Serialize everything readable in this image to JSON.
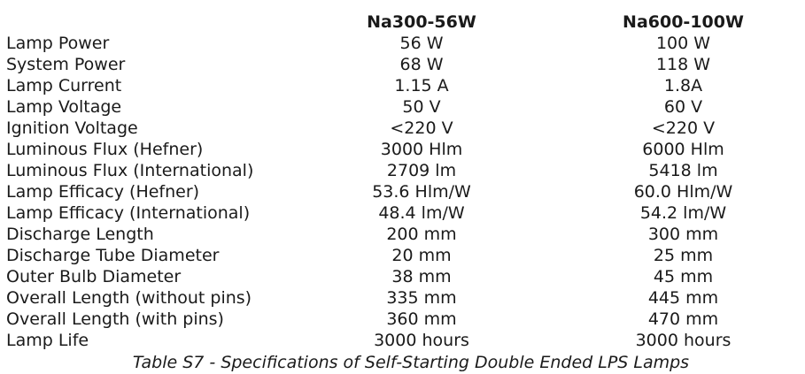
{
  "table": {
    "columns": [
      "",
      "Na300-56W",
      "Na600-100W"
    ],
    "rows": [
      [
        "Lamp Power",
        "56 W",
        "100 W"
      ],
      [
        "System Power",
        "68 W",
        "118 W"
      ],
      [
        "Lamp Current",
        "1.15 A",
        "1.8A"
      ],
      [
        "Lamp Voltage",
        "50 V",
        "60 V"
      ],
      [
        "Ignition Voltage",
        "<220 V",
        "<220 V"
      ],
      [
        "Luminous Flux (Hefner)",
        "3000 Hlm",
        "6000 Hlm"
      ],
      [
        "Luminous Flux (International)",
        "2709 lm",
        "5418 lm"
      ],
      [
        "Lamp Efficacy (Hefner)",
        "53.6 Hlm/W",
        "60.0 Hlm/W"
      ],
      [
        "Lamp Efficacy (International)",
        "48.4 lm/W",
        "54.2 lm/W"
      ],
      [
        "Discharge Length",
        "200 mm",
        "300 mm"
      ],
      [
        "Discharge Tube Diameter",
        "20 mm",
        "25 mm"
      ],
      [
        "Outer Bulb Diameter",
        "38 mm",
        "45 mm"
      ],
      [
        "Overall Length (without pins)",
        "335 mm",
        "445 mm"
      ],
      [
        "Overall Length (with pins)",
        "360 mm",
        "470 mm"
      ],
      [
        "Lamp Life",
        "3000 hours",
        "3000 hours"
      ]
    ]
  },
  "caption": "Table S7 - Specifications of Self-Starting Double Ended LPS Lamps"
}
